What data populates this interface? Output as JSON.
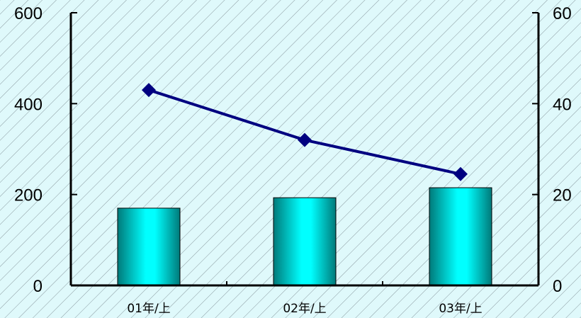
{
  "chart_data": {
    "type": "bar",
    "categories": [
      "01年/上",
      "02年/上",
      "03年/上"
    ],
    "series": [
      {
        "type": "bar",
        "axis": "left",
        "values": [
          170,
          193,
          215
        ]
      },
      {
        "type": "line",
        "axis": "right",
        "values": [
          43,
          32,
          24.5
        ]
      }
    ],
    "y_left": {
      "min": 0,
      "max": 600,
      "ticks": [
        0,
        200,
        400,
        600
      ]
    },
    "y_right": {
      "min": 0,
      "max": 60,
      "ticks": [
        0,
        20,
        40,
        60
      ]
    },
    "colors": {
      "background": "#dff9fb",
      "hatch": "#8a9aa0",
      "bar_light": "#00ffff",
      "bar_dark": "#007a7a",
      "line": "#000080",
      "marker": "#000080",
      "axis": "#000000"
    },
    "grid": false,
    "legend": "none"
  }
}
